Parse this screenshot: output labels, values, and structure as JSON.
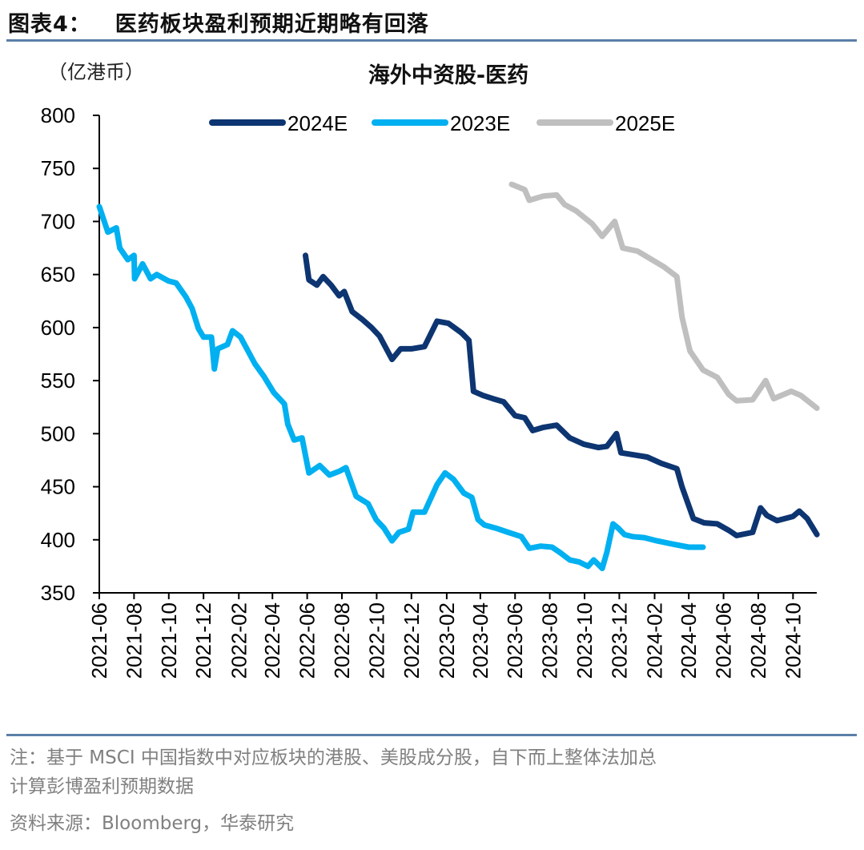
{
  "header": {
    "figure_no": "图表4：",
    "title": "医药板块盈利预期近期略有回落"
  },
  "footer": {
    "note": "注：基于 MSCI 中国指数中对应板块的港股、美股成分股，自下而上整体法加总计算彭博盈利预期数据",
    "note_line1": "注：基于 MSCI 中国指数中对应板块的港股、美股成分股，自下而上整体法加总",
    "note_line2": "计算彭博盈利预期数据",
    "source": "资料来源：Bloomberg，华泰研究"
  },
  "colors": {
    "2024E": "#0d3571",
    "2023E": "#00b0f0",
    "2025E": "#bfbfbf",
    "rule": "#5b7fa8"
  },
  "chart_data": {
    "type": "line",
    "title": "海外中资股-医药",
    "unit_label": "（亿港币）",
    "ylim": [
      350,
      800
    ],
    "yticks": [
      350,
      400,
      450,
      500,
      550,
      600,
      650,
      700,
      750,
      800
    ],
    "xlim": [
      "2021-06-01",
      "2024-11-15"
    ],
    "xticks": [
      "2021-06",
      "2021-08",
      "2021-10",
      "2021-12",
      "2022-02",
      "2022-04",
      "2022-06",
      "2022-08",
      "2022-10",
      "2022-12",
      "2023-02",
      "2023-04",
      "2023-06",
      "2023-08",
      "2023-10",
      "2023-12",
      "2024-02",
      "2024-04",
      "2024-06",
      "2024-08",
      "2024-10"
    ],
    "grid": false,
    "legend_position": "top",
    "series": [
      {
        "name": "2024E",
        "points": [
          [
            "2022-05-29",
            668
          ],
          [
            "2022-06-04",
            645
          ],
          [
            "2022-06-18",
            640
          ],
          [
            "2022-06-29",
            648
          ],
          [
            "2022-07-13",
            640
          ],
          [
            "2022-07-27",
            630
          ],
          [
            "2022-08-05",
            634
          ],
          [
            "2022-08-19",
            615
          ],
          [
            "2022-09-05",
            608
          ],
          [
            "2022-09-22",
            600
          ],
          [
            "2022-10-06",
            592
          ],
          [
            "2022-10-28",
            570
          ],
          [
            "2022-11-12",
            580
          ],
          [
            "2022-12-01",
            580
          ],
          [
            "2022-12-24",
            582
          ],
          [
            "2023-01-15",
            606
          ],
          [
            "2023-02-04",
            604
          ],
          [
            "2023-02-27",
            595
          ],
          [
            "2023-03-12",
            588
          ],
          [
            "2023-03-20",
            540
          ],
          [
            "2023-04-06",
            536
          ],
          [
            "2023-04-23",
            533
          ],
          [
            "2023-05-12",
            530
          ],
          [
            "2023-06-01",
            517
          ],
          [
            "2023-06-18",
            515
          ],
          [
            "2023-07-02",
            503
          ],
          [
            "2023-07-21",
            506
          ],
          [
            "2023-08-13",
            508
          ],
          [
            "2023-09-05",
            496
          ],
          [
            "2023-09-30",
            490
          ],
          [
            "2023-10-25",
            487
          ],
          [
            "2023-11-09",
            488
          ],
          [
            "2023-11-26",
            500
          ],
          [
            "2023-12-04",
            482
          ],
          [
            "2023-12-27",
            480
          ],
          [
            "2024-01-19",
            478
          ],
          [
            "2024-02-13",
            472
          ],
          [
            "2024-03-11",
            467
          ],
          [
            "2024-03-20",
            450
          ],
          [
            "2024-04-09",
            420
          ],
          [
            "2024-04-28",
            416
          ],
          [
            "2024-05-21",
            415
          ],
          [
            "2024-06-10",
            409
          ],
          [
            "2024-06-24",
            404
          ],
          [
            "2024-07-22",
            407
          ],
          [
            "2024-08-05",
            430
          ],
          [
            "2024-08-16",
            423
          ],
          [
            "2024-09-03",
            418
          ],
          [
            "2024-10-01",
            422
          ],
          [
            "2024-10-12",
            427
          ],
          [
            "2024-10-26",
            420
          ],
          [
            "2024-11-12",
            405
          ]
        ]
      },
      {
        "name": "2023E",
        "points": [
          [
            "2021-06-01",
            714
          ],
          [
            "2021-06-16",
            690
          ],
          [
            "2021-07-01",
            694
          ],
          [
            "2021-07-07",
            675
          ],
          [
            "2021-07-21",
            664
          ],
          [
            "2021-08-01",
            668
          ],
          [
            "2021-08-02",
            646
          ],
          [
            "2021-08-16",
            660
          ],
          [
            "2021-08-30",
            646
          ],
          [
            "2021-09-10",
            650
          ],
          [
            "2021-09-30",
            644
          ],
          [
            "2021-10-14",
            642
          ],
          [
            "2021-10-31",
            629
          ],
          [
            "2021-11-11",
            618
          ],
          [
            "2021-11-22",
            599
          ],
          [
            "2021-12-01",
            591
          ],
          [
            "2021-12-15",
            591
          ],
          [
            "2021-12-20",
            561
          ],
          [
            "2021-12-26",
            580
          ],
          [
            "2022-01-12",
            584
          ],
          [
            "2022-01-21",
            597
          ],
          [
            "2022-02-04",
            591
          ],
          [
            "2022-02-18",
            577
          ],
          [
            "2022-03-01",
            566
          ],
          [
            "2022-03-17",
            554
          ],
          [
            "2022-04-03",
            539
          ],
          [
            "2022-04-22",
            528
          ],
          [
            "2022-04-28",
            509
          ],
          [
            "2022-05-09",
            494
          ],
          [
            "2022-05-23",
            496
          ],
          [
            "2022-06-04",
            463
          ],
          [
            "2022-06-23",
            470
          ],
          [
            "2022-07-10",
            461
          ],
          [
            "2022-07-29",
            465
          ],
          [
            "2022-08-08",
            468
          ],
          [
            "2022-08-26",
            441
          ],
          [
            "2022-09-16",
            434
          ],
          [
            "2022-09-30",
            419
          ],
          [
            "2022-10-14",
            411
          ],
          [
            "2022-10-28",
            399
          ],
          [
            "2022-11-09",
            407
          ],
          [
            "2022-11-26",
            410
          ],
          [
            "2022-12-04",
            426
          ],
          [
            "2022-12-24",
            426
          ],
          [
            "2023-01-15",
            452
          ],
          [
            "2023-01-29",
            463
          ],
          [
            "2023-02-13",
            457
          ],
          [
            "2023-03-03",
            444
          ],
          [
            "2023-03-17",
            440
          ],
          [
            "2023-03-28",
            419
          ],
          [
            "2023-04-08",
            414
          ],
          [
            "2023-04-28",
            411
          ],
          [
            "2023-05-20",
            407
          ],
          [
            "2023-06-12",
            403
          ],
          [
            "2023-06-26",
            392
          ],
          [
            "2023-07-16",
            394
          ],
          [
            "2023-08-05",
            393
          ],
          [
            "2023-08-19",
            388
          ],
          [
            "2023-09-05",
            381
          ],
          [
            "2023-09-22",
            379
          ],
          [
            "2023-10-07",
            375
          ],
          [
            "2023-10-17",
            381
          ],
          [
            "2023-11-01",
            373
          ],
          [
            "2023-11-09",
            388
          ],
          [
            "2023-11-20",
            415
          ],
          [
            "2023-11-29",
            411
          ],
          [
            "2023-12-10",
            405
          ],
          [
            "2023-12-24",
            403
          ],
          [
            "2024-01-14",
            402
          ],
          [
            "2024-02-05",
            399
          ],
          [
            "2024-03-03",
            396
          ],
          [
            "2024-04-01",
            393
          ],
          [
            "2024-04-26",
            393
          ]
        ]
      },
      {
        "name": "2025E",
        "points": [
          [
            "2023-05-26",
            735
          ],
          [
            "2023-06-18",
            730
          ],
          [
            "2023-06-26",
            720
          ],
          [
            "2023-07-21",
            724
          ],
          [
            "2023-08-13",
            725
          ],
          [
            "2023-08-27",
            716
          ],
          [
            "2023-09-16",
            710
          ],
          [
            "2023-10-14",
            698
          ],
          [
            "2023-11-01",
            686
          ],
          [
            "2023-11-23",
            700
          ],
          [
            "2023-12-07",
            675
          ],
          [
            "2024-01-02",
            672
          ],
          [
            "2024-01-24",
            665
          ],
          [
            "2024-02-18",
            657
          ],
          [
            "2024-03-11",
            648
          ],
          [
            "2024-03-20",
            610
          ],
          [
            "2024-04-03",
            578
          ],
          [
            "2024-04-26",
            560
          ],
          [
            "2024-05-21",
            553
          ],
          [
            "2024-06-10",
            537
          ],
          [
            "2024-06-24",
            531
          ],
          [
            "2024-07-22",
            532
          ],
          [
            "2024-08-14",
            550
          ],
          [
            "2024-08-28",
            533
          ],
          [
            "2024-09-28",
            540
          ],
          [
            "2024-10-15",
            536
          ],
          [
            "2024-11-12",
            524
          ]
        ]
      }
    ]
  }
}
